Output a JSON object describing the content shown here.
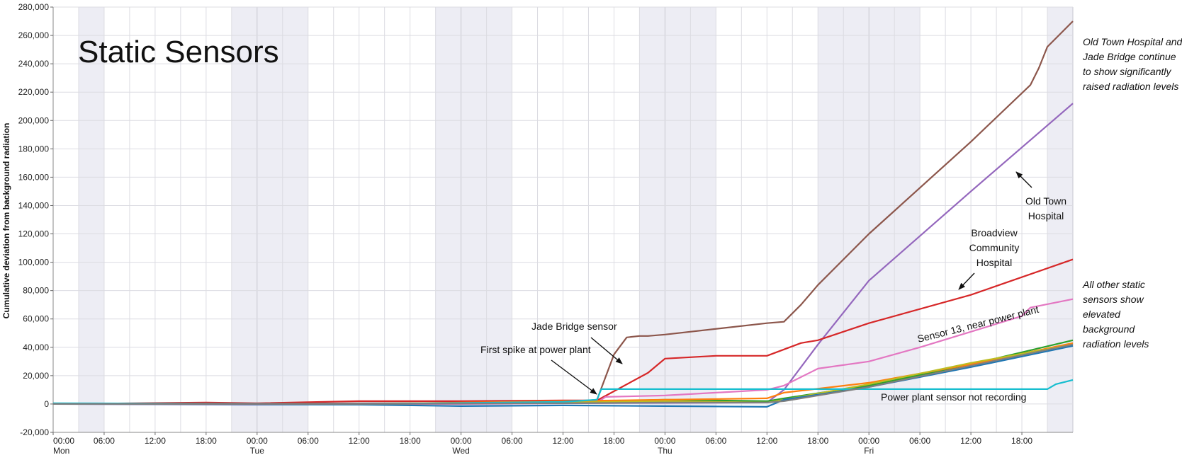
{
  "chart_data": {
    "type": "line",
    "title": "Static Sensors",
    "ylabel": "Cumulative deviation from background radiation",
    "xlabel": "",
    "x_unit": "hours",
    "x_range": [
      0,
      120
    ],
    "ylim": [
      -20000,
      280000
    ],
    "y_ticks": [
      -20000,
      0,
      20000,
      40000,
      60000,
      80000,
      100000,
      120000,
      140000,
      160000,
      180000,
      200000,
      220000,
      240000,
      260000,
      280000
    ],
    "y_tick_labels": [
      "-20,000",
      "0",
      "20,000",
      "40,000",
      "60,000",
      "80,000",
      "100,000",
      "120,000",
      "140,000",
      "160,000",
      "180,000",
      "200,000",
      "220,000",
      "240,000",
      "260,000",
      "280,000"
    ],
    "x_ticks": [
      0,
      6,
      12,
      18,
      24,
      30,
      36,
      42,
      48,
      54,
      60,
      66,
      72,
      78,
      84,
      90,
      96,
      102,
      108,
      114
    ],
    "x_tick_labels": [
      "00:00",
      "06:00",
      "12:00",
      "18:00",
      "00:00",
      "06:00",
      "12:00",
      "18:00",
      "00:00",
      "06:00",
      "12:00",
      "18:00",
      "00:00",
      "06:00",
      "12:00",
      "18:00",
      "00:00",
      "06:00",
      "12:00",
      "18:00"
    ],
    "day_labels": [
      {
        "x": 0,
        "label": "Mon"
      },
      {
        "x": 24,
        "label": "Tue"
      },
      {
        "x": 48,
        "label": "Wed"
      },
      {
        "x": 72,
        "label": "Thu"
      },
      {
        "x": 96,
        "label": "Fri"
      }
    ],
    "minor_step_hours": 3,
    "grid": true,
    "night_bands": [
      [
        3,
        6
      ],
      [
        21,
        30
      ],
      [
        45,
        54
      ],
      [
        69,
        78
      ],
      [
        90,
        96
      ],
      [
        96,
        102
      ],
      [
        117,
        120
      ]
    ],
    "series": [
      {
        "color": "#8c564b",
        "x": [
          0,
          24,
          36,
          60,
          64,
          66,
          67.5,
          69,
          70,
          72,
          84,
          86,
          88,
          90,
          96,
          108,
          115,
          116,
          117,
          118,
          120
        ],
        "y": [
          0,
          0,
          500,
          1000,
          3000,
          35000,
          47000,
          48000,
          48000,
          49000,
          57000,
          58000,
          70000,
          84000,
          120000,
          185000,
          225000,
          237000,
          252000,
          258000,
          270000
        ]
      },
      {
        "color": "#9467bd",
        "x": [
          0,
          60,
          84,
          86,
          90,
          96,
          108,
          120
        ],
        "y": [
          0,
          500,
          1000,
          10000,
          42000,
          87000,
          150000,
          212000
        ]
      },
      {
        "color": "#d62728",
        "x": [
          0,
          18,
          24,
          36,
          48,
          60,
          64,
          70,
          72,
          78,
          80,
          84,
          88,
          90,
          96,
          108,
          120
        ],
        "y": [
          0,
          1000,
          500,
          2000,
          2000,
          2500,
          2500,
          22000,
          32000,
          34000,
          34000,
          34000,
          43000,
          45000,
          57000,
          77000,
          102000
        ]
      },
      {
        "color": "#e377c2",
        "x": [
          0,
          24,
          36,
          48,
          60,
          64,
          65,
          72,
          84,
          86,
          90,
          96,
          102,
          108,
          114,
          115,
          120
        ],
        "y": [
          0,
          -500,
          0,
          0,
          500,
          1000,
          5000,
          6000,
          10000,
          13000,
          25000,
          30000,
          40000,
          51000,
          62000,
          68000,
          74000
        ]
      },
      {
        "color": "#2ca02c",
        "x": [
          0,
          36,
          60,
          72,
          84,
          86,
          96,
          108,
          120
        ],
        "y": [
          0,
          0,
          1000,
          3000,
          2000,
          4000,
          13000,
          28000,
          45000
        ]
      },
      {
        "color": "#ff7f0e",
        "x": [
          0,
          36,
          60,
          72,
          84,
          86,
          96,
          108,
          120
        ],
        "y": [
          0,
          0,
          2000,
          3000,
          4000,
          8000,
          15000,
          28000,
          43000
        ]
      },
      {
        "color": "#bcbd22",
        "x": [
          0,
          36,
          60,
          72,
          84,
          86,
          96,
          108,
          120
        ],
        "y": [
          0,
          0,
          1000,
          2000,
          1000,
          3000,
          14000,
          29000,
          42000
        ]
      },
      {
        "color": "#1f77b4",
        "x": [
          0,
          36,
          48,
          60,
          72,
          84,
          86,
          96,
          108,
          120
        ],
        "y": [
          0,
          -500,
          -1500,
          -1000,
          -1500,
          -2000,
          3000,
          12000,
          26000,
          41000
        ]
      },
      {
        "color": "#17becf",
        "x": [
          0,
          36,
          60,
          64,
          64.5,
          72,
          84,
          96,
          108,
          114,
          117,
          118,
          120
        ],
        "y": [
          500,
          0,
          1500,
          3000,
          10500,
          10500,
          10500,
          10500,
          10500,
          10500,
          10500,
          14000,
          17000
        ]
      },
      {
        "color": "#7f7f7f",
        "x": [
          0,
          36,
          60,
          72,
          84,
          86,
          96,
          108,
          120
        ],
        "y": [
          0,
          0,
          500,
          1000,
          1000,
          2000,
          12000,
          27000,
          42000
        ]
      }
    ],
    "annotations": [
      {
        "text": "Jade Bridge sensor",
        "at": [
          66.8,
          30000
        ]
      },
      {
        "text": "First spike at power plant",
        "at": [
          64.2,
          7000
        ]
      },
      {
        "text": "Broadview Community Hospital",
        "at": [
          106.4,
          80000
        ]
      },
      {
        "text": "Old Town Hospital",
        "at": [
          113.5,
          165000
        ]
      },
      {
        "text": "Sensor 13, near power plant",
        "at": [
          104,
          52000
        ]
      },
      {
        "text": "Power plant sensor not recording",
        "at": [
          106,
          5000
        ]
      }
    ],
    "side_notes": [
      "Old Town Hospital and Jade Bridge  continue to show significantly raised radiation levels",
      "All other static sensors show elevated background radiation levels"
    ]
  },
  "text": {
    "ann_jade": "Jade Bridge sensor",
    "ann_first_spike": "First spike at power plant",
    "ann_broadview_1": "Broadview",
    "ann_broadview_2": "Community",
    "ann_broadview_3": "Hospital",
    "ann_oldtown_1": "Old Town",
    "ann_oldtown_2": "Hospital",
    "ann_sensor13": "Sensor 13, near power plant",
    "ann_not_recording": "Power plant sensor not recording",
    "note_top_1": "Old Town Hospital and",
    "note_top_2": "Jade Bridge  continue",
    "note_top_3": "to show significantly",
    "note_top_4": "raised radiation levels",
    "note_bottom_1": "All other static",
    "note_bottom_2": "sensors show",
    "note_bottom_3": "elevated",
    "note_bottom_4": "background",
    "note_bottom_5": "radiation levels"
  }
}
